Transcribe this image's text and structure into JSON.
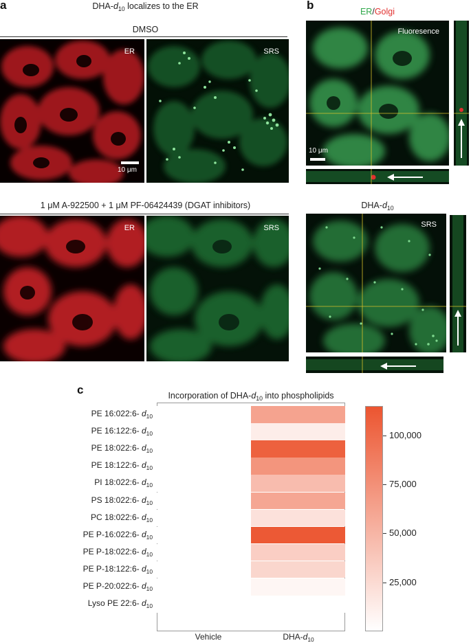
{
  "panel_a": {
    "letter": "a",
    "title_prefix": "DHA-",
    "title_d": "d",
    "title_sub": "10",
    "title_suffix": " localizes to the ER",
    "condition1": "DMSO",
    "condition2": "1 μM A-922500 + 1 μM PF-06424439 (DGAT inhibitors)",
    "img_er_label": "ER",
    "img_srs_label": "SRS",
    "scale_bar": "10 μm"
  },
  "panel_b": {
    "letter": "b",
    "title_er": "ER",
    "title_slash": "/",
    "title_golgi": "Golgi",
    "img_label": "Fluoresence",
    "scale_bar": "10 μm",
    "title2_prefix": "DHA-",
    "title2_d": "d",
    "title2_sub": "10",
    "img2_label": "SRS"
  },
  "panel_c": {
    "letter": "c",
    "title_prefix": "Incorporation of DHA-",
    "title_d": "d",
    "title_sub": "10",
    "title_suffix": " into phospholipids"
  },
  "colors": {
    "er_red": "#e8302f",
    "srs_green": "#4fc26a",
    "heat_max": "#ec5530",
    "heat_min": "#ffffff"
  },
  "chart_data": {
    "type": "heatmap",
    "title": "Incorporation of DHA-d10 into phospholipids",
    "rows": [
      {
        "prefix": "PE 16:022:6- ",
        "d": "d",
        "sub": "10"
      },
      {
        "prefix": "PE 16:122:6- ",
        "d": "d",
        "sub": "10"
      },
      {
        "prefix": "PE 18:022:6- ",
        "d": "d",
        "sub": "10"
      },
      {
        "prefix": "PE 18:122:6- ",
        "d": "d",
        "sub": "10"
      },
      {
        "prefix": "PI 18:022:6- ",
        "d": "d",
        "sub": "10"
      },
      {
        "prefix": "PS 18:022:6- ",
        "d": "d",
        "sub": "10"
      },
      {
        "prefix": "PC 18:022:6- ",
        "d": "d",
        "sub": "10"
      },
      {
        "prefix": "PE P-16:022:6- ",
        "d": "d",
        "sub": "10"
      },
      {
        "prefix": "PE P-18:022:6- ",
        "d": "d",
        "sub": "10"
      },
      {
        "prefix": "PE P-18:122:6- ",
        "d": "d",
        "sub": "10"
      },
      {
        "prefix": "PE P-20:022:6- ",
        "d": "d",
        "sub": "10"
      },
      {
        "prefix": "Lyso PE 22:6- ",
        "d": "d",
        "sub": "10"
      }
    ],
    "columns": [
      {
        "prefix": "Vehicle",
        "d": "",
        "sub": ""
      },
      {
        "prefix": "DHA-",
        "d": "d",
        "sub": "10"
      }
    ],
    "values": [
      [
        0,
        62000
      ],
      [
        0,
        12000
      ],
      [
        0,
        107000
      ],
      [
        0,
        72000
      ],
      [
        0,
        45000
      ],
      [
        0,
        60000
      ],
      [
        0,
        20000
      ],
      [
        0,
        112000
      ],
      [
        0,
        33000
      ],
      [
        0,
        28000
      ],
      [
        0,
        6000
      ],
      [
        0,
        0
      ]
    ],
    "colorbar": {
      "range": [
        0,
        115000
      ],
      "ticks": [
        25000,
        50000,
        75000,
        100000
      ],
      "tick_labels": [
        "25,000",
        "50,000",
        "75,000",
        "100,000"
      ]
    }
  }
}
